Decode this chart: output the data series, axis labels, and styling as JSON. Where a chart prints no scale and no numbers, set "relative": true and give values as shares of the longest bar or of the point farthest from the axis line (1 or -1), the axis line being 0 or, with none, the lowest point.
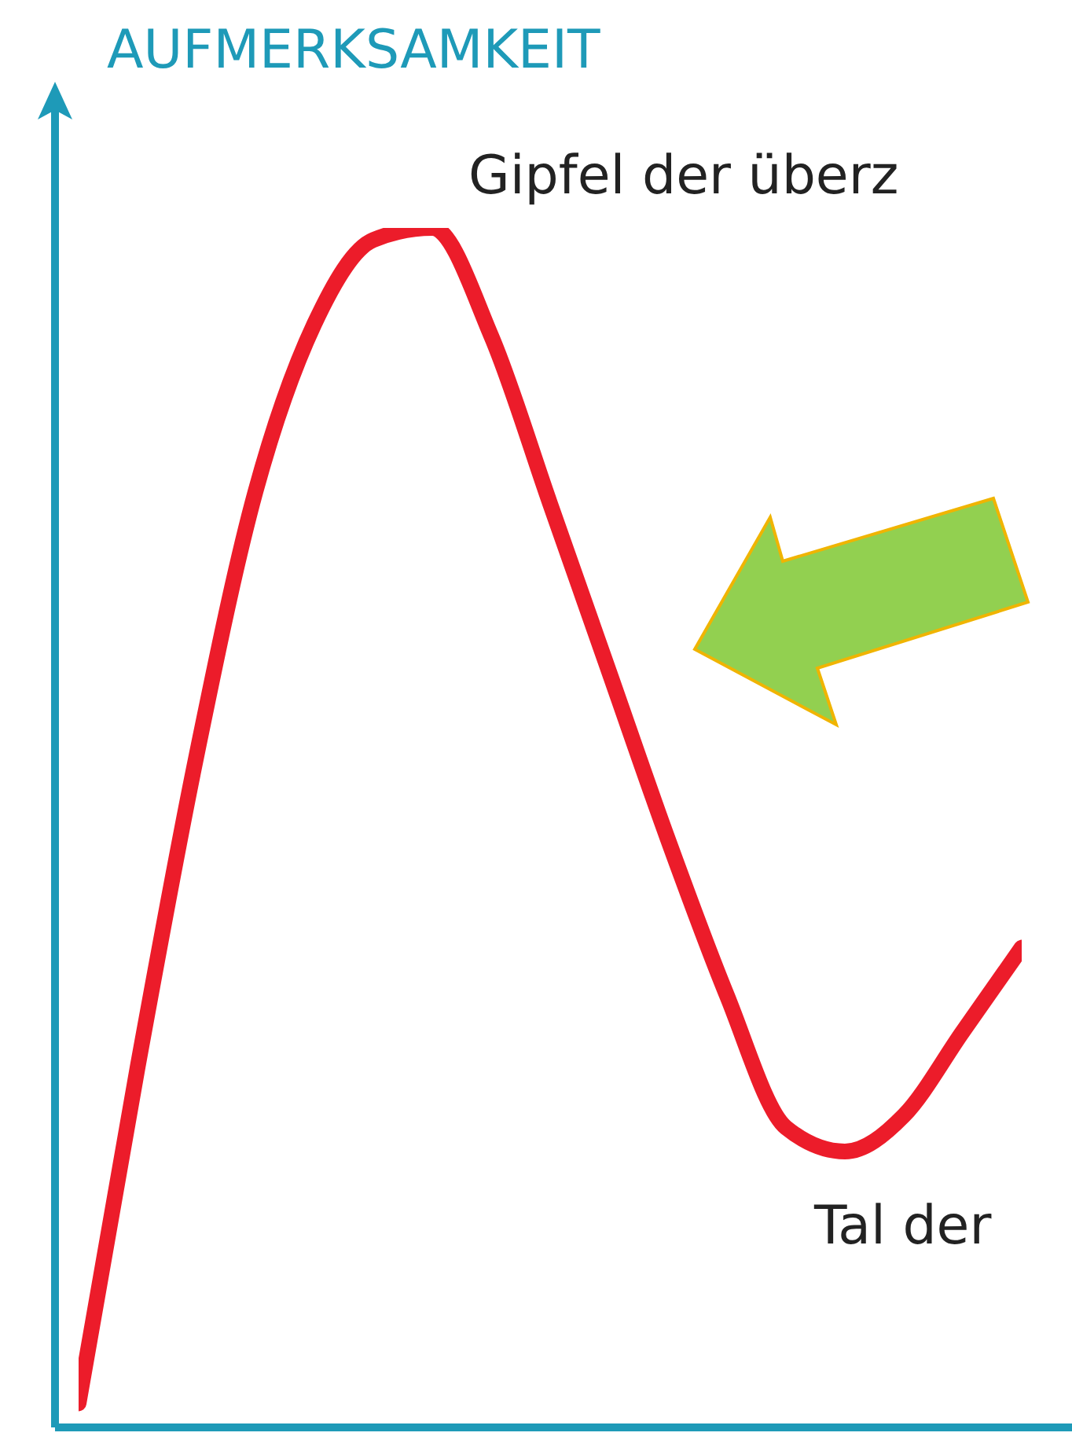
{
  "chart_data": {
    "type": "line",
    "ylabel": "AUFMERKSAMKEIT",
    "relative": true,
    "categories": [
      null,
      null,
      null,
      null,
      null,
      null,
      null,
      null,
      null,
      null,
      null,
      null,
      null,
      null,
      null,
      null,
      null
    ],
    "series": [
      {
        "color": "#ec1c2a",
        "values": [
          0.02,
          0.3,
          0.56,
          0.78,
          0.92,
          0.99,
          1.0,
          0.91,
          0.77,
          0.63,
          0.49,
          0.36,
          0.25,
          0.23,
          0.26,
          0.33,
          0.4
        ]
      }
    ],
    "annotations": [
      "Gipfel der überz",
      "Tal der"
    ],
    "marker": "none"
  }
}
